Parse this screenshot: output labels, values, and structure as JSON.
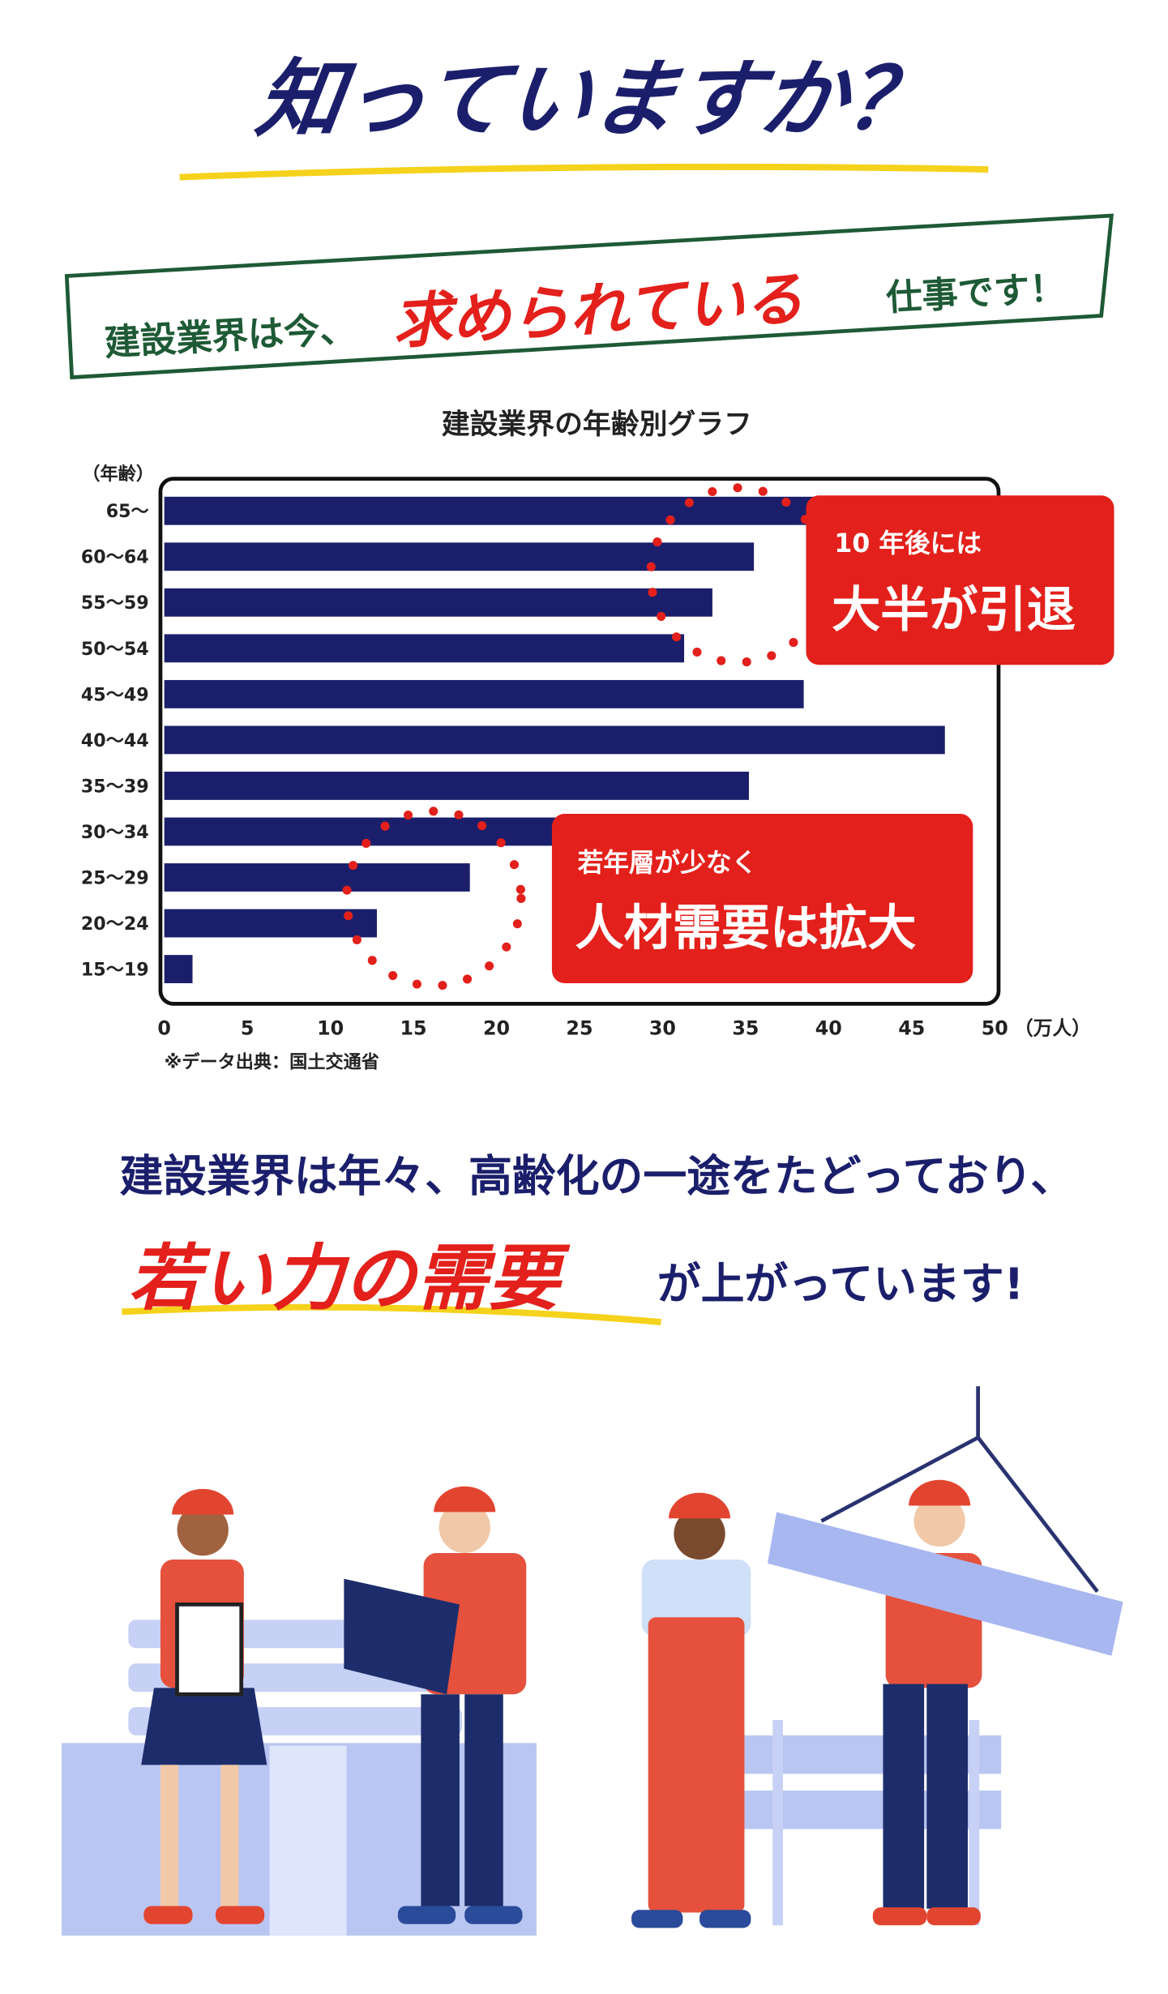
{
  "headline": "知っていますか？",
  "banner": {
    "lead": "建設業界は今、",
    "emphasis": "求められている",
    "tail": "仕事です！"
  },
  "chart_data": {
    "type": "bar",
    "orientation": "horizontal",
    "title": "建設業界の年齢別グラフ",
    "y_label": "（年齢）",
    "x_label": "（万人）",
    "categories": [
      "65～",
      "60～64",
      "55～59",
      "50～54",
      "45～49",
      "40～44",
      "35～39",
      "30～34",
      "25～29",
      "20～24",
      "15～19"
    ],
    "values": [
      42,
      35.5,
      33,
      31.3,
      38.5,
      47,
      35.2,
      30,
      18.4,
      12.8,
      1.7
    ],
    "color": "#1b1f6b",
    "xlim": [
      0,
      50
    ],
    "xticks": [
      0,
      5,
      10,
      15,
      20,
      25,
      30,
      35,
      40,
      45,
      50
    ],
    "source": "※データ出典：国土交通省",
    "annotations": [
      {
        "line1": "10 年後には",
        "line2": "大半が引退"
      },
      {
        "line1": "若年層が少なく",
        "line2": "人材需要は拡大"
      }
    ]
  },
  "message": {
    "line1": "建設業界は年々、高齢化の一途をたどっており、",
    "emphasis": "若い力の需要",
    "tail": "が上がっています!"
  }
}
